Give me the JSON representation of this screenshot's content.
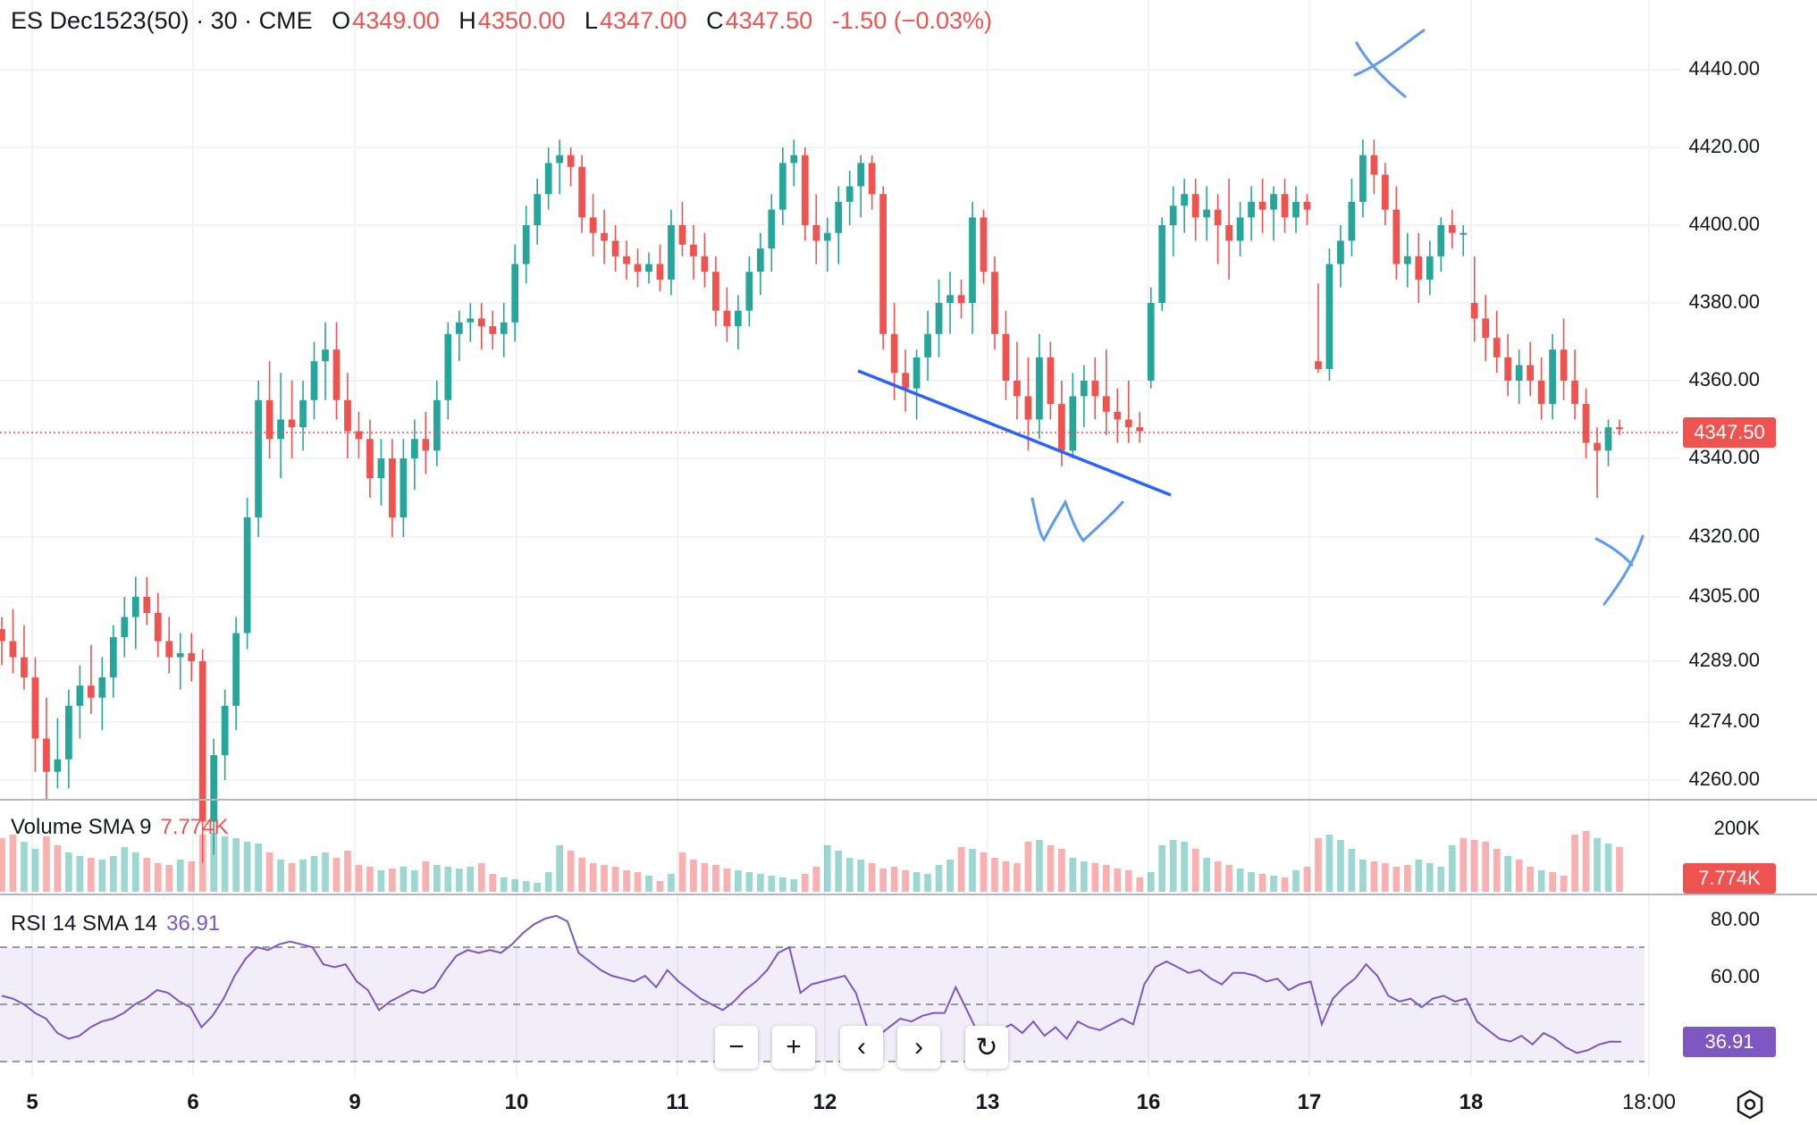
{
  "header": {
    "symbol": "ES Dec1523(50) · 30 · CME",
    "open_label": "O",
    "open": "4349.00",
    "high_label": "H",
    "high": "4350.00",
    "low_label": "L",
    "low": "4347.00",
    "close_label": "C",
    "close": "4347.50",
    "change": "-1.50 (−0.03%)"
  },
  "price_axis": {
    "labels": [
      "4440.00",
      "4420.00",
      "4400.00",
      "4380.00",
      "4360.00",
      "4340.00",
      "4320.00",
      "4305.00",
      "4289.00",
      "4274.00",
      "4260.00"
    ],
    "current_price": "4347.50"
  },
  "volume_pane": {
    "title": "Volume SMA 9",
    "value": "7.774K",
    "axis_label": "200K",
    "badge": "7.774K"
  },
  "rsi_pane": {
    "title": "RSI 14 SMA 14",
    "value": "36.91",
    "axis_labels": [
      "80.00",
      "60.00"
    ],
    "badge": "36.91"
  },
  "time_axis": {
    "labels": [
      "5",
      "6",
      "9",
      "10",
      "11",
      "12",
      "13",
      "16",
      "17",
      "18",
      "18:00"
    ]
  },
  "annotations": {
    "w_label": "W",
    "x_label": "X",
    "y_label": "Y"
  },
  "toolbar": {
    "zoom_out": "−",
    "zoom_in": "+",
    "scroll_left": "‹",
    "scroll_right": "›",
    "reset": "↻"
  },
  "colors": {
    "up": "#26a69a",
    "down": "#ef5350",
    "rsi_line": "#7e57c2",
    "trendline": "#2962ff",
    "handwriting": "#5b9bf0"
  },
  "chart_data": {
    "type": "candlestick",
    "instrument": "ES Dec1523(50)",
    "interval": "30",
    "exchange": "CME",
    "x_labels": [
      "5",
      "6",
      "9",
      "10",
      "11",
      "12",
      "13",
      "16",
      "17",
      "18",
      "18:00"
    ],
    "y_ticks": [
      4440,
      4420,
      4400,
      4380,
      4360,
      4340,
      4320,
      4305,
      4289,
      4274,
      4260
    ],
    "ylim": [
      4258,
      4448
    ],
    "last_price": 4347.5,
    "candles": [
      [
        4297,
        4300,
        4288,
        4294
      ],
      [
        4294,
        4302,
        4286,
        4290
      ],
      [
        4290,
        4298,
        4282,
        4285
      ],
      [
        4285,
        4290,
        4262,
        4270
      ],
      [
        4270,
        4280,
        4255,
        4262
      ],
      [
        4262,
        4275,
        4258,
        4265
      ],
      [
        4265,
        4282,
        4258,
        4278
      ],
      [
        4278,
        4288,
        4270,
        4283
      ],
      [
        4283,
        4293,
        4276,
        4280
      ],
      [
        4280,
        4290,
        4272,
        4285
      ],
      [
        4285,
        4298,
        4280,
        4295
      ],
      [
        4295,
        4305,
        4290,
        4300
      ],
      [
        4300,
        4310,
        4292,
        4305
      ],
      [
        4305,
        4310,
        4298,
        4301
      ],
      [
        4301,
        4306,
        4290,
        4294
      ],
      [
        4294,
        4300,
        4286,
        4290
      ],
      [
        4290,
        4296,
        4282,
        4291
      ],
      [
        4291,
        4296,
        4284,
        4289
      ],
      [
        4289,
        4292,
        4240,
        4250
      ],
      [
        4250,
        4270,
        4242,
        4266
      ],
      [
        4266,
        4282,
        4260,
        4278
      ],
      [
        4278,
        4300,
        4272,
        4296
      ],
      [
        4296,
        4330,
        4292,
        4325
      ],
      [
        4325,
        4360,
        4320,
        4355
      ],
      [
        4355,
        4365,
        4340,
        4345
      ],
      [
        4345,
        4362,
        4335,
        4350
      ],
      [
        4350,
        4360,
        4340,
        4348
      ],
      [
        4348,
        4360,
        4342,
        4355
      ],
      [
        4355,
        4370,
        4350,
        4365
      ],
      [
        4365,
        4375,
        4355,
        4368
      ],
      [
        4368,
        4375,
        4350,
        4355
      ],
      [
        4355,
        4362,
        4340,
        4347
      ],
      [
        4347,
        4352,
        4340,
        4345
      ],
      [
        4345,
        4350,
        4330,
        4335
      ],
      [
        4335,
        4345,
        4328,
        4340
      ],
      [
        4340,
        4345,
        4320,
        4325
      ],
      [
        4325,
        4345,
        4320,
        4340
      ],
      [
        4340,
        4350,
        4332,
        4345
      ],
      [
        4345,
        4352,
        4336,
        4342
      ],
      [
        4342,
        4360,
        4338,
        4355
      ],
      [
        4355,
        4375,
        4350,
        4372
      ],
      [
        4372,
        4378,
        4365,
        4375
      ],
      [
        4375,
        4380,
        4370,
        4376
      ],
      [
        4376,
        4380,
        4368,
        4374
      ],
      [
        4374,
        4378,
        4368,
        4372
      ],
      [
        4372,
        4380,
        4366,
        4375
      ],
      [
        4375,
        4395,
        4370,
        4390
      ],
      [
        4390,
        4405,
        4385,
        4400
      ],
      [
        4400,
        4412,
        4395,
        4408
      ],
      [
        4408,
        4420,
        4404,
        4416
      ],
      [
        4416,
        4422,
        4408,
        4418
      ],
      [
        4418,
        4420,
        4410,
        4415
      ],
      [
        4415,
        4418,
        4398,
        4402
      ],
      [
        4402,
        4408,
        4392,
        4398
      ],
      [
        4398,
        4404,
        4390,
        4396
      ],
      [
        4396,
        4400,
        4388,
        4392
      ],
      [
        4392,
        4396,
        4386,
        4390
      ],
      [
        4390,
        4394,
        4384,
        4388
      ],
      [
        4388,
        4393,
        4385,
        4390
      ],
      [
        4390,
        4395,
        4383,
        4386
      ],
      [
        4386,
        4404,
        4382,
        4400
      ],
      [
        4400,
        4406,
        4392,
        4395
      ],
      [
        4395,
        4400,
        4386,
        4392
      ],
      [
        4392,
        4398,
        4384,
        4388
      ],
      [
        4388,
        4392,
        4374,
        4378
      ],
      [
        4378,
        4384,
        4370,
        4374
      ],
      [
        4374,
        4382,
        4368,
        4378
      ],
      [
        4378,
        4392,
        4374,
        4388
      ],
      [
        4388,
        4398,
        4382,
        4394
      ],
      [
        4394,
        4408,
        4388,
        4404
      ],
      [
        4404,
        4420,
        4400,
        4416
      ],
      [
        4416,
        4422,
        4410,
        4418
      ],
      [
        4418,
        4420,
        4396,
        4400
      ],
      [
        4400,
        4408,
        4390,
        4396
      ],
      [
        4396,
        4402,
        4388,
        4398
      ],
      [
        4398,
        4410,
        4390,
        4406
      ],
      [
        4406,
        4414,
        4400,
        4410
      ],
      [
        4410,
        4418,
        4402,
        4416
      ],
      [
        4416,
        4418,
        4404,
        4408
      ],
      [
        4408,
        4410,
        4368,
        4372
      ],
      [
        4372,
        4380,
        4355,
        4362
      ],
      [
        4362,
        4368,
        4352,
        4358
      ],
      [
        4358,
        4368,
        4350,
        4366
      ],
      [
        4366,
        4378,
        4360,
        4372
      ],
      [
        4372,
        4386,
        4366,
        4380
      ],
      [
        4380,
        4388,
        4372,
        4382
      ],
      [
        4382,
        4386,
        4376,
        4380
      ],
      [
        4380,
        4406,
        4372,
        4402
      ],
      [
        4402,
        4404,
        4385,
        4388
      ],
      [
        4388,
        4392,
        4368,
        4372
      ],
      [
        4372,
        4378,
        4355,
        4360
      ],
      [
        4360,
        4370,
        4350,
        4356
      ],
      [
        4356,
        4366,
        4342,
        4350
      ],
      [
        4350,
        4372,
        4345,
        4366
      ],
      [
        4366,
        4370,
        4350,
        4354
      ],
      [
        4354,
        4360,
        4338,
        4342
      ],
      [
        4342,
        4362,
        4340,
        4356
      ],
      [
        4356,
        4364,
        4348,
        4360
      ],
      [
        4360,
        4366,
        4350,
        4356
      ],
      [
        4356,
        4368,
        4346,
        4352
      ],
      [
        4352,
        4358,
        4344,
        4350
      ],
      [
        4350,
        4360,
        4344,
        4348
      ],
      [
        4348,
        4352,
        4344,
        4347
      ],
      [
        4360,
        4384,
        4358,
        4380
      ],
      [
        4380,
        4402,
        4378,
        4400
      ],
      [
        4400,
        4410,
        4392,
        4405
      ],
      [
        4405,
        4412,
        4398,
        4408
      ],
      [
        4408,
        4412,
        4396,
        4402
      ],
      [
        4402,
        4410,
        4396,
        4404
      ],
      [
        4404,
        4408,
        4390,
        4400
      ],
      [
        4400,
        4412,
        4386,
        4396
      ],
      [
        4396,
        4406,
        4392,
        4402
      ],
      [
        4402,
        4410,
        4396,
        4406
      ],
      [
        4406,
        4412,
        4398,
        4404
      ],
      [
        4404,
        4410,
        4396,
        4408
      ],
      [
        4408,
        4412,
        4398,
        4402
      ],
      [
        4402,
        4410,
        4398,
        4406
      ],
      [
        4406,
        4408,
        4400,
        4404
      ],
      [
        4365,
        4385,
        4362,
        4363
      ],
      [
        4363,
        4394,
        4360,
        4390
      ],
      [
        4390,
        4400,
        4384,
        4396
      ],
      [
        4396,
        4412,
        4392,
        4406
      ],
      [
        4406,
        4422,
        4402,
        4418
      ],
      [
        4418,
        4422,
        4408,
        4413
      ],
      [
        4413,
        4416,
        4400,
        4404
      ],
      [
        4404,
        4410,
        4386,
        4390
      ],
      [
        4390,
        4398,
        4384,
        4392
      ],
      [
        4392,
        4398,
        4380,
        4386
      ],
      [
        4386,
        4396,
        4382,
        4392
      ],
      [
        4392,
        4402,
        4388,
        4400
      ],
      [
        4400,
        4404,
        4394,
        4398
      ],
      [
        4398,
        4400,
        4392,
        4398
      ],
      [
        4380,
        4392,
        4370,
        4376
      ],
      [
        4376,
        4382,
        4365,
        4371
      ],
      [
        4371,
        4378,
        4362,
        4366
      ],
      [
        4366,
        4372,
        4356,
        4360
      ],
      [
        4360,
        4368,
        4354,
        4364
      ],
      [
        4364,
        4370,
        4356,
        4360
      ],
      [
        4360,
        4366,
        4350,
        4354
      ],
      [
        4354,
        4372,
        4350,
        4368
      ],
      [
        4368,
        4376,
        4355,
        4360
      ],
      [
        4360,
        4368,
        4350,
        4354
      ],
      [
        4354,
        4358,
        4340,
        4344
      ],
      [
        4344,
        4348,
        4330,
        4342
      ],
      [
        4342,
        4350,
        4338,
        4348
      ],
      [
        4348,
        4350,
        4346,
        4347.5
      ]
    ],
    "volume": {
      "scale_max": 200000,
      "values": [
        150,
        160,
        140,
        120,
        155,
        130,
        110,
        100,
        95,
        90,
        100,
        125,
        110,
        95,
        80,
        75,
        90,
        85,
        160,
        165,
        155,
        150,
        140,
        135,
        110,
        90,
        80,
        90,
        100,
        110,
        95,
        115,
        75,
        70,
        60,
        65,
        70,
        60,
        85,
        75,
        70,
        65,
        70,
        80,
        50,
        40,
        35,
        30,
        25,
        55,
        130,
        115,
        95,
        80,
        75,
        70,
        60,
        55,
        45,
        30,
        50,
        110,
        90,
        80,
        75,
        65,
        60,
        55,
        50,
        45,
        40,
        35,
        50,
        70,
        130,
        115,
        95,
        90,
        80,
        65,
        70,
        60,
        55,
        50,
        75,
        90,
        125,
        120,
        110,
        95,
        85,
        80,
        140,
        145,
        130,
        120,
        95,
        85,
        80,
        75,
        65,
        60,
        40,
        55,
        130,
        145,
        140,
        120,
        95,
        85,
        75,
        65,
        55,
        50,
        45,
        40,
        60,
        70,
        150,
        160,
        145,
        120,
        90,
        85,
        80,
        70,
        75,
        90,
        80,
        70,
        130,
        150,
        145,
        140,
        120,
        100,
        90,
        70,
        60,
        55,
        45,
        160,
        170,
        150,
        135,
        125,
        110,
        70,
        40,
        30
      ],
      "up": [
        0,
        0,
        1,
        1,
        0,
        0,
        1,
        1,
        0,
        1,
        1,
        1,
        1,
        0,
        0,
        0,
        1,
        0,
        0,
        1,
        1,
        1,
        1,
        1,
        0,
        1,
        0,
        1,
        1,
        1,
        0,
        0,
        0,
        0,
        1,
        0,
        1,
        1,
        0,
        1,
        1,
        1,
        1,
        0,
        0,
        1,
        1,
        1,
        1,
        1,
        1,
        0,
        0,
        0,
        0,
        0,
        0,
        0,
        1,
        0,
        1,
        0,
        0,
        0,
        0,
        0,
        1,
        1,
        1,
        1,
        1,
        1,
        0,
        0,
        1,
        1,
        1,
        1,
        0,
        0,
        0,
        0,
        1,
        1,
        1,
        1,
        0,
        1,
        0,
        0,
        0,
        0,
        0,
        1,
        0,
        0,
        1,
        1,
        0,
        0,
        0,
        0,
        0,
        1,
        1,
        1,
        1,
        0,
        1,
        0,
        0,
        1,
        1,
        0,
        1,
        0,
        1,
        0,
        0,
        1,
        1,
        1,
        1,
        0,
        0,
        0,
        0,
        1,
        1,
        1,
        1,
        0,
        0,
        0,
        0,
        1,
        0,
        0,
        1,
        0,
        0,
        0,
        0,
        1,
        1,
        0,
        0,
        1,
        0,
        0
      ]
    },
    "rsi": {
      "levels": [
        70,
        50,
        30
      ],
      "visible_range": [
        25,
        82
      ],
      "values": [
        53,
        52,
        50,
        47,
        45,
        40,
        38,
        39,
        42,
        44,
        45,
        47,
        50,
        52,
        55,
        54,
        51,
        49,
        42,
        46,
        52,
        60,
        66,
        70,
        69,
        71,
        72,
        71,
        70,
        64,
        63,
        64,
        58,
        55,
        48,
        51,
        53,
        55,
        54,
        56,
        62,
        67,
        69,
        68,
        69,
        68,
        71,
        75,
        78,
        80,
        81,
        79,
        68,
        65,
        62,
        60,
        59,
        58,
        60,
        56,
        62,
        58,
        55,
        52,
        50,
        48,
        51,
        55,
        58,
        62,
        68,
        70,
        54,
        57,
        58,
        59,
        60,
        54,
        42,
        39,
        42,
        45,
        44,
        46,
        47,
        47,
        56,
        48,
        40,
        37,
        41,
        43,
        40,
        44,
        39,
        42,
        38,
        44,
        42,
        41,
        43,
        45,
        43,
        57,
        63,
        65,
        63,
        61,
        62,
        59,
        57,
        61,
        61,
        60,
        58,
        59,
        55,
        57,
        58,
        43,
        52,
        56,
        59,
        64,
        60,
        53,
        51,
        52,
        49,
        52,
        53,
        51,
        52,
        44,
        41,
        38,
        37,
        39,
        36,
        40,
        38,
        35,
        33,
        34,
        36,
        37,
        36.91
      ]
    },
    "series_indicators": [
      "Volume SMA 9",
      "RSI 14 SMA 14"
    ]
  }
}
